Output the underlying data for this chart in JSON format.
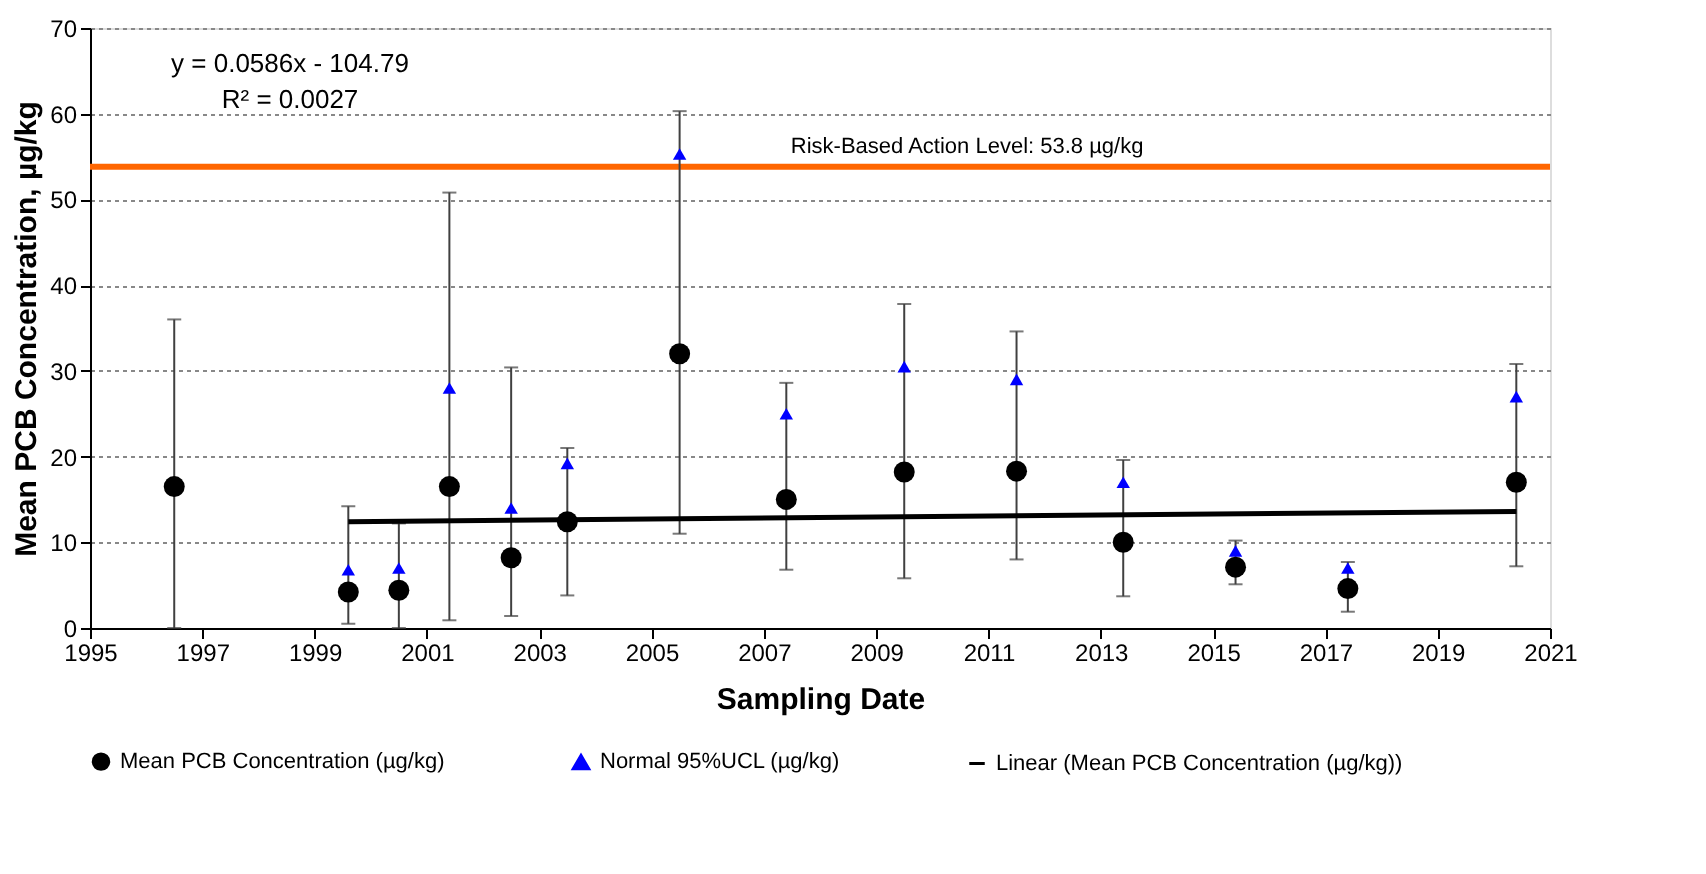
{
  "chart_data": {
    "type": "scatter",
    "xlabel": "Sampling Date",
    "ylabel": "Mean PCB Concentration, µg/kg",
    "x": [
      1996.5,
      1999.6,
      2000.5,
      2001.4,
      2002.5,
      2003.5,
      2005.5,
      2007.4,
      2009.5,
      2011.5,
      2013.4,
      2015.4,
      2017.4,
      2020.4
    ],
    "series": [
      {
        "name": "Mean PCB Concentration (µg/kg)",
        "color": "#000000",
        "marker": "circle",
        "values": [
          16.5,
          4.2,
          4.4,
          16.5,
          8.2,
          12.4,
          32,
          15,
          18.2,
          18.3,
          10,
          7.1,
          4.6,
          17
        ],
        "errors": [
          [
            0,
            36
          ],
          [
            0.5,
            14.2
          ],
          [
            0,
            12.2
          ],
          [
            0.9,
            50.8
          ],
          [
            1.4,
            30.4
          ],
          [
            3.8,
            21
          ],
          [
            11,
            60.3
          ],
          [
            6.8,
            28.6
          ],
          [
            5.8,
            37.8
          ],
          [
            8,
            34.6
          ],
          [
            3.7,
            19.6
          ],
          [
            5.1,
            10.2
          ],
          [
            1.9,
            7.7
          ],
          [
            7.2,
            30.8
          ]
        ]
      },
      {
        "name": "Normal 95%UCL (µg/kg)",
        "color": "#0000ff",
        "marker": "triangle",
        "values": [
          null,
          6.8,
          7,
          28,
          14,
          19.2,
          55.3,
          25,
          30.5,
          29,
          17,
          9,
          7,
          27
        ]
      },
      {
        "name": "Linear (Mean PCB Concentration (µg/kg))",
        "type": "line",
        "color": "#000000",
        "marker": "none",
        "x": [
          1999.6,
          2020.4
        ],
        "values": [
          12.4,
          13.6
        ]
      }
    ],
    "xlim": [
      1995,
      2021
    ],
    "xticks": [
      1995,
      1997,
      1999,
      2001,
      2003,
      2005,
      2007,
      2009,
      2011,
      2013,
      2015,
      2017,
      2019,
      2021
    ],
    "ylim": [
      0,
      70
    ],
    "yticks": [
      0,
      10,
      20,
      30,
      40,
      50,
      60,
      70
    ],
    "ref_lines": [
      {
        "axis": "y",
        "value": 53.8,
        "label": "Risk-Based Action Level:  53.8 µg/kg",
        "color": "#ff6600"
      }
    ],
    "annotations": [
      "y = 0.0586x - 104.79",
      "R² = 0.0027"
    ],
    "grid": "y",
    "legend": "bottom"
  }
}
